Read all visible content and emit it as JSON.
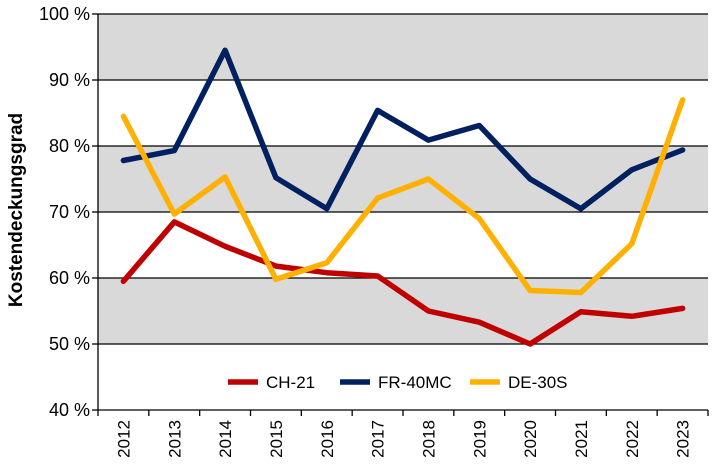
{
  "chart_data": {
    "type": "line",
    "title": "",
    "xlabel": "",
    "ylabel": "Kostendeckungsgrad",
    "ylim": [
      40,
      100
    ],
    "y_ticks": [
      40,
      50,
      60,
      70,
      80,
      90,
      100
    ],
    "y_tick_labels": [
      "40 %",
      "50 %",
      "60 %",
      "70 %",
      "80 %",
      "90 %",
      "100 %"
    ],
    "x": [
      "2012",
      "2013",
      "2014",
      "2015",
      "2016",
      "2017",
      "2018",
      "2019",
      "2020",
      "2021",
      "2022",
      "2023"
    ],
    "grid": "alternating horizontal bands",
    "band_color": "#d9d9d9",
    "legend_position": "bottom-center inside plot",
    "series": [
      {
        "name": "CH-21",
        "color": "#c00000",
        "values": [
          59.5,
          68.5,
          64.8,
          61.8,
          60.8,
          60.3,
          55.0,
          53.3,
          50.0,
          54.9,
          54.2,
          55.4
        ]
      },
      {
        "name": "FR-40MC",
        "color": "#002060",
        "values": [
          77.8,
          79.3,
          94.5,
          75.2,
          70.5,
          85.4,
          80.9,
          83.1,
          75.0,
          70.5,
          76.4,
          79.4
        ]
      },
      {
        "name": "DE-30S",
        "color": "#ffb000",
        "values": [
          84.5,
          69.7,
          75.3,
          59.8,
          62.3,
          72.1,
          75.0,
          69.0,
          58.1,
          57.8,
          65.2,
          87.0
        ]
      }
    ]
  }
}
